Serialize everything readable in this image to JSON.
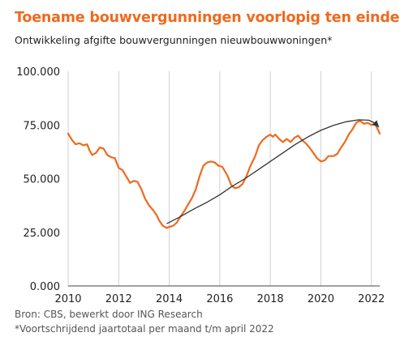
{
  "title": "Toename bouwvergunningen voorlopig ten einde",
  "subtitle": "Ontwikkeling afgifte bouwvergunningen nieuwbouwwoningen*",
  "source_line1": "Bron: CBS, bewerkt door ING Research",
  "source_line2": "*Voortschrijdend jaartotaal per maand t/m april 2022",
  "colors": {
    "series": "#ee6a1e",
    "trend": "#333333",
    "grid": "#d0d0d0",
    "axis": "#444444"
  },
  "chart_data": {
    "type": "line",
    "title": "Toename bouwvergunningen voorlopig ten einde",
    "subtitle": "Ontwikkeling afgifte bouwvergunningen nieuwbouwwoningen*",
    "xlabel": "",
    "ylabel": "",
    "xlim": [
      2010,
      2022.33
    ],
    "ylim": [
      0,
      100000
    ],
    "grid": "vertical",
    "x_ticks": [
      2010,
      2012,
      2014,
      2016,
      2018,
      2020,
      2022
    ],
    "x_tick_labels": [
      "2010",
      "2012",
      "2014",
      "2016",
      "2018",
      "2020",
      "2022"
    ],
    "y_ticks": [
      0,
      25000,
      50000,
      75000,
      100000
    ],
    "y_tick_labels": [
      "0.000",
      "25.000",
      "50.000",
      "75.000",
      "100.000"
    ],
    "series": [
      {
        "values": [
          [
            2010.0,
            71000
          ],
          [
            2010.15,
            68000
          ],
          [
            2010.3,
            66000
          ],
          [
            2010.45,
            66500
          ],
          [
            2010.6,
            65500
          ],
          [
            2010.75,
            66000
          ],
          [
            2010.85,
            63000
          ],
          [
            2010.95,
            61000
          ],
          [
            2011.1,
            62000
          ],
          [
            2011.25,
            64500
          ],
          [
            2011.4,
            64000
          ],
          [
            2011.55,
            61000
          ],
          [
            2011.7,
            60000
          ],
          [
            2011.85,
            59500
          ],
          [
            2012.0,
            55000
          ],
          [
            2012.15,
            54000
          ],
          [
            2012.3,
            51000
          ],
          [
            2012.45,
            48000
          ],
          [
            2012.6,
            49000
          ],
          [
            2012.75,
            48500
          ],
          [
            2012.9,
            45000
          ],
          [
            2013.05,
            40500
          ],
          [
            2013.2,
            37500
          ],
          [
            2013.35,
            35500
          ],
          [
            2013.5,
            33000
          ],
          [
            2013.6,
            30500
          ],
          [
            2013.75,
            28000
          ],
          [
            2013.9,
            27000
          ],
          [
            2014.0,
            27500
          ],
          [
            2014.15,
            28000
          ],
          [
            2014.3,
            29500
          ],
          [
            2014.45,
            32500
          ],
          [
            2014.6,
            35000
          ],
          [
            2014.75,
            38000
          ],
          [
            2014.9,
            41000
          ],
          [
            2015.05,
            45000
          ],
          [
            2015.2,
            51000
          ],
          [
            2015.35,
            56000
          ],
          [
            2015.5,
            57500
          ],
          [
            2015.65,
            58000
          ],
          [
            2015.8,
            57500
          ],
          [
            2015.95,
            56000
          ],
          [
            2016.1,
            55500
          ],
          [
            2016.3,
            51500
          ],
          [
            2016.45,
            47000
          ],
          [
            2016.6,
            45500
          ],
          [
            2016.75,
            46000
          ],
          [
            2016.9,
            47500
          ],
          [
            2017.05,
            51000
          ],
          [
            2017.2,
            55500
          ],
          [
            2017.4,
            60500
          ],
          [
            2017.55,
            65500
          ],
          [
            2017.7,
            68000
          ],
          [
            2017.85,
            69500
          ],
          [
            2018.0,
            70500
          ],
          [
            2018.1,
            69500
          ],
          [
            2018.2,
            70500
          ],
          [
            2018.35,
            68500
          ],
          [
            2018.5,
            67000
          ],
          [
            2018.65,
            68500
          ],
          [
            2018.8,
            67000
          ],
          [
            2018.95,
            69000
          ],
          [
            2019.1,
            70000
          ],
          [
            2019.25,
            68000
          ],
          [
            2019.4,
            66500
          ],
          [
            2019.55,
            64500
          ],
          [
            2019.7,
            62000
          ],
          [
            2019.85,
            59500
          ],
          [
            2020.0,
            58000
          ],
          [
            2020.15,
            58500
          ],
          [
            2020.3,
            60500
          ],
          [
            2020.5,
            60500
          ],
          [
            2020.65,
            61500
          ],
          [
            2020.8,
            64500
          ],
          [
            2020.95,
            67000
          ],
          [
            2021.1,
            70500
          ],
          [
            2021.25,
            73000
          ],
          [
            2021.4,
            76000
          ],
          [
            2021.55,
            77000
          ],
          [
            2021.7,
            75500
          ],
          [
            2021.85,
            76000
          ],
          [
            2022.0,
            75000
          ],
          [
            2022.15,
            75500
          ],
          [
            2022.33,
            71000
          ]
        ]
      },
      {
        "type": "trend-arrow",
        "values": [
          [
            2013.9,
            29000
          ],
          [
            2014.4,
            32000
          ],
          [
            2015.0,
            36000
          ],
          [
            2015.5,
            39000
          ],
          [
            2016.0,
            42500
          ],
          [
            2016.5,
            46500
          ],
          [
            2017.0,
            50000
          ],
          [
            2017.5,
            54000
          ],
          [
            2018.0,
            58000
          ],
          [
            2018.5,
            62000
          ],
          [
            2019.0,
            66000
          ],
          [
            2019.5,
            69500
          ],
          [
            2020.0,
            72500
          ],
          [
            2020.5,
            74800
          ],
          [
            2021.0,
            76500
          ],
          [
            2021.5,
            77400
          ],
          [
            2021.9,
            77200
          ],
          [
            2022.15,
            75800
          ],
          [
            2022.3,
            74000
          ]
        ]
      }
    ]
  }
}
